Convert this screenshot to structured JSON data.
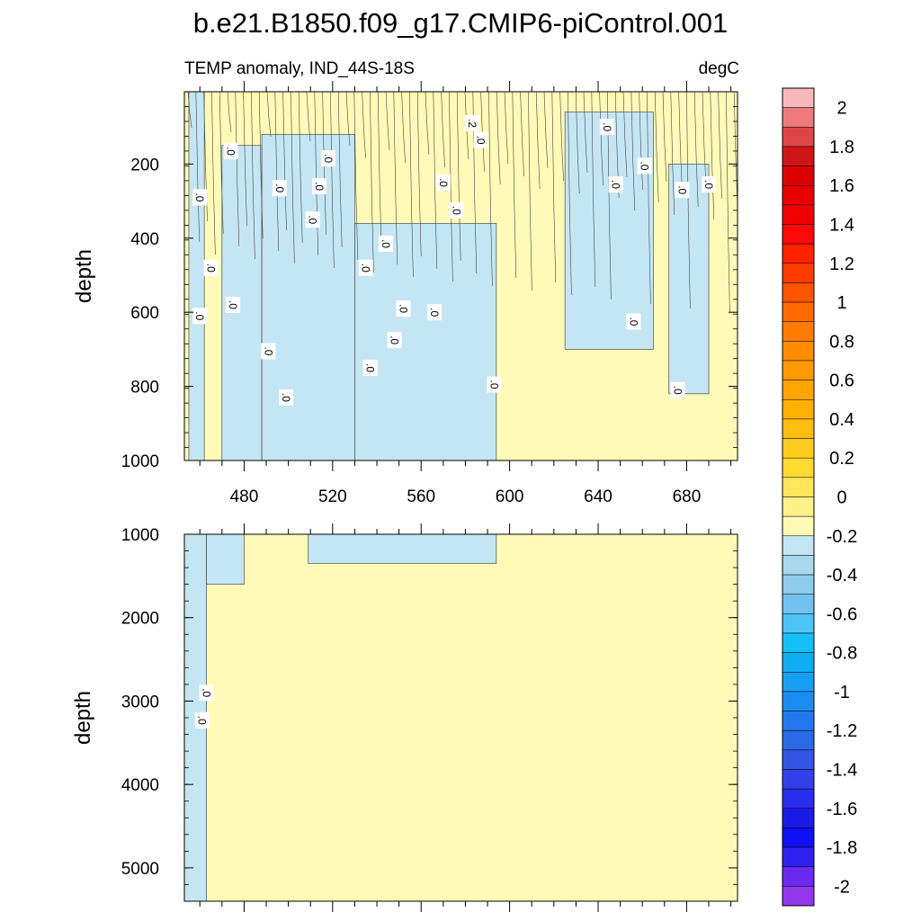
{
  "chart_data": {
    "type": "contour",
    "title": "b.e21.B1850.f09_g17.CMIP6-piControl.001",
    "panels": [
      {
        "subtitle_left": "TEMP anomaly, IND_44S-18S",
        "subtitle_right": "degC",
        "ylabel": "depth",
        "xlim": [
          453,
          703
        ],
        "ylim": [
          1000,
          5
        ],
        "xticks": [
          480,
          520,
          560,
          600,
          640,
          680
        ],
        "yticks": [
          200,
          400,
          600,
          800,
          1000
        ],
        "negative_regions": [
          {
            "x": [
              455,
              462
            ],
            "top": 5,
            "bottom": 1000
          },
          {
            "x": [
              470,
              488
            ],
            "top": 150,
            "bottom": 1000
          },
          {
            "x": [
              488,
              530
            ],
            "top": 120,
            "bottom": 1000
          },
          {
            "x": [
              530,
              594
            ],
            "top": 360,
            "bottom": 1000
          },
          {
            "x": [
              625,
              665
            ],
            "top": 60,
            "bottom": 700
          },
          {
            "x": [
              672,
              690
            ],
            "top": 200,
            "bottom": 820
          }
        ],
        "contour_labels": [
          {
            "x": 460,
            "y": 290,
            "text": ".0"
          },
          {
            "x": 460,
            "y": 610,
            "text": ".0"
          },
          {
            "x": 465,
            "y": 480,
            "text": ".0"
          },
          {
            "x": 474,
            "y": 165,
            "text": ".0"
          },
          {
            "x": 475,
            "y": 580,
            "text": ".0"
          },
          {
            "x": 491,
            "y": 705,
            "text": ".0"
          },
          {
            "x": 496,
            "y": 265,
            "text": ".0"
          },
          {
            "x": 499,
            "y": 830,
            "text": ".0"
          },
          {
            "x": 511,
            "y": 350,
            "text": ".0"
          },
          {
            "x": 514,
            "y": 260,
            "text": ".0"
          },
          {
            "x": 518,
            "y": 185,
            "text": ".0"
          },
          {
            "x": 535,
            "y": 480,
            "text": ".0"
          },
          {
            "x": 544,
            "y": 415,
            "text": ".0"
          },
          {
            "x": 537,
            "y": 750,
            "text": ".0"
          },
          {
            "x": 548,
            "y": 675,
            "text": ".0"
          },
          {
            "x": 552,
            "y": 590,
            "text": ".0"
          },
          {
            "x": 566,
            "y": 600,
            "text": ".0"
          },
          {
            "x": 570,
            "y": 250,
            "text": ".0"
          },
          {
            "x": 576,
            "y": 325,
            "text": ".0"
          },
          {
            "x": 583,
            "y": 90,
            "text": ".2"
          },
          {
            "x": 587,
            "y": 135,
            "text": ".0"
          },
          {
            "x": 593,
            "y": 795,
            "text": ".0"
          },
          {
            "x": 644,
            "y": 100,
            "text": ".0"
          },
          {
            "x": 648,
            "y": 255,
            "text": ".0"
          },
          {
            "x": 656,
            "y": 625,
            "text": ".0"
          },
          {
            "x": 661,
            "y": 205,
            "text": ".0"
          },
          {
            "x": 676,
            "y": 810,
            "text": ".0"
          },
          {
            "x": 678,
            "y": 270,
            "text": ".0"
          },
          {
            "x": 690,
            "y": 255,
            "text": ".0"
          }
        ]
      },
      {
        "ylabel": "depth",
        "xlim": [
          453,
          703
        ],
        "ylim": [
          5400,
          1000
        ],
        "yticks": [
          1000,
          2000,
          3000,
          4000,
          5000
        ],
        "negative_regions": [
          {
            "x": [
              453,
              463
            ],
            "top": 1000,
            "bottom": 5400
          },
          {
            "x": [
              463,
              480
            ],
            "top": 1000,
            "bottom": 1600
          },
          {
            "x": [
              509,
              594
            ],
            "top": 1000,
            "bottom": 1350
          }
        ],
        "contour_labels": [
          {
            "x": 463,
            "y": 2900,
            "text": ".0"
          },
          {
            "x": 461,
            "y": 3230,
            "text": ".0"
          }
        ]
      }
    ],
    "colorbar": {
      "levels": [
        "2",
        "1.8",
        "1.6",
        "1.4",
        "1.2",
        "1",
        "0.8",
        "0.6",
        "0.4",
        "0.2",
        "0",
        "-0.2",
        "-0.4",
        "-0.6",
        "-0.8",
        "-1",
        "-1.2",
        "-1.4",
        "-1.6",
        "-1.8",
        "-2"
      ],
      "colors_top_to_bottom": [
        "#f9b8bb",
        "#ee7a7c",
        "#dd4546",
        "#cf1515",
        "#dd0000",
        "#e80000",
        "#f20000",
        "#ff0808",
        "#ff2300",
        "#ff3c00",
        "#ff5500",
        "#ff6a00",
        "#ff7c00",
        "#ff8c00",
        "#ff9900",
        "#ffa400",
        "#ffb000",
        "#ffbe10",
        "#ffcc20",
        "#ffda30",
        "#ffe65a",
        "#fff08a",
        "#fffab8",
        "#c4e6f4",
        "#aad8ee",
        "#8fcbea",
        "#72c3ef",
        "#4ec3f7",
        "#14bff6",
        "#10acf4",
        "#16a0f4",
        "#1a8cf0",
        "#2278ec",
        "#2a6ae8",
        "#3456e4",
        "#3240e8",
        "#2a2eee",
        "#1a1ae6",
        "#1010f4",
        "#3020f0",
        "#6a28f0",
        "#9338ee"
      ],
      "fill_positive": "#fffab8",
      "fill_negative": "#c4e6f4"
    }
  }
}
